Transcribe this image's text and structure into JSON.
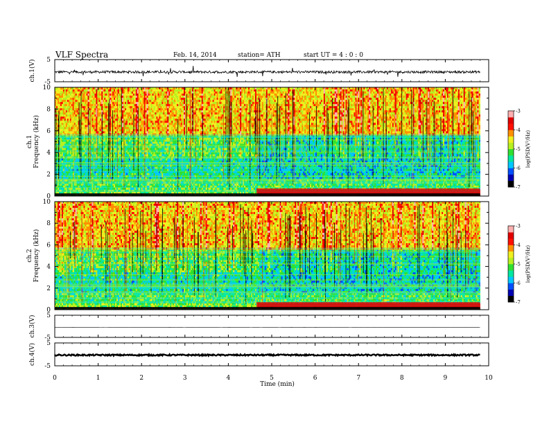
{
  "header": {
    "title": "VLF  Spectra",
    "date": "Feb. 14, 2014",
    "station": "station= ATH",
    "start_ut": "start  UT  =   4  : 0  : 0"
  },
  "chart_data": [
    {
      "type": "line",
      "panel": "ch1-waveform",
      "ylabel": "ch.1(V)",
      "ylim": [
        -5,
        5
      ],
      "yticks": [
        "5",
        "-5"
      ],
      "xlim": [
        0,
        10
      ],
      "x": [
        0,
        1,
        2,
        3,
        4,
        5,
        6,
        7,
        8,
        9,
        9.8
      ],
      "y": [
        -0.6,
        -0.5,
        -0.5,
        -0.5,
        -0.5,
        -0.5,
        -0.5,
        -0.5,
        -0.5,
        -0.5,
        -0.5
      ]
    },
    {
      "type": "heatmap",
      "panel": "ch1-spectrogram",
      "ylabel": "ch.1\nFrequency  (kHz)",
      "ylim": [
        0,
        10
      ],
      "yticks": [
        "0",
        "2",
        "4",
        "6",
        "8",
        "10"
      ],
      "xlim": [
        0,
        10
      ],
      "data_end_min": 9.8,
      "transition_min": 4.65,
      "colorbar": {
        "label": "log(PSD(V²/Hz)",
        "range": [
          -7,
          -3
        ],
        "ticks": [
          "-3",
          "-4",
          "-5",
          "-6",
          "-7"
        ],
        "colors": [
          "#000000",
          "#0000b4",
          "#0050ff",
          "#00c8ff",
          "#00e8a0",
          "#30e030",
          "#b8f020",
          "#f0f020",
          "#ff9000",
          "#ff1000",
          "#e00000",
          "#ffb0b0"
        ]
      }
    },
    {
      "type": "heatmap",
      "panel": "ch2-spectrogram",
      "ylabel": "ch.2\nFrequency  (kHz)",
      "ylim": [
        0,
        10
      ],
      "yticks": [
        "0",
        "2",
        "4",
        "6",
        "8",
        "10"
      ],
      "xlim": [
        0,
        10
      ],
      "data_end_min": 9.8,
      "transition_min": 4.65,
      "colorbar": {
        "label": "log(PSD(V²/Hz)",
        "range": [
          -7,
          -3
        ],
        "ticks": [
          "-3",
          "-4",
          "-5",
          "-6",
          "-7"
        ],
        "colors": [
          "#000000",
          "#0000b4",
          "#0050ff",
          "#00c8ff",
          "#00e8a0",
          "#30e030",
          "#b8f020",
          "#f0f020",
          "#ff9000",
          "#ff1000",
          "#e00000",
          "#ffb0b0"
        ]
      }
    },
    {
      "type": "line",
      "panel": "ch3-waveform",
      "ylabel": "ch.3(V)",
      "ylim": [
        -5,
        5
      ],
      "yticks": [
        "5",
        "-5"
      ],
      "xlim": [
        0,
        10
      ],
      "x": [
        0,
        9.8
      ],
      "y": [
        -0.5,
        -0.5
      ]
    },
    {
      "type": "line",
      "panel": "ch4-waveform",
      "ylabel": "ch.4(V)",
      "ylim": [
        -5,
        5
      ],
      "yticks": [
        "5",
        "-5"
      ],
      "xlim": [
        0,
        10
      ],
      "x": [
        0,
        9.8
      ],
      "y": [
        -0.3,
        -0.3
      ]
    }
  ],
  "xaxis": {
    "label": "Time  (min)",
    "ticks": [
      "0",
      "1",
      "2",
      "3",
      "4",
      "5",
      "6",
      "7",
      "8",
      "9",
      "10"
    ]
  }
}
